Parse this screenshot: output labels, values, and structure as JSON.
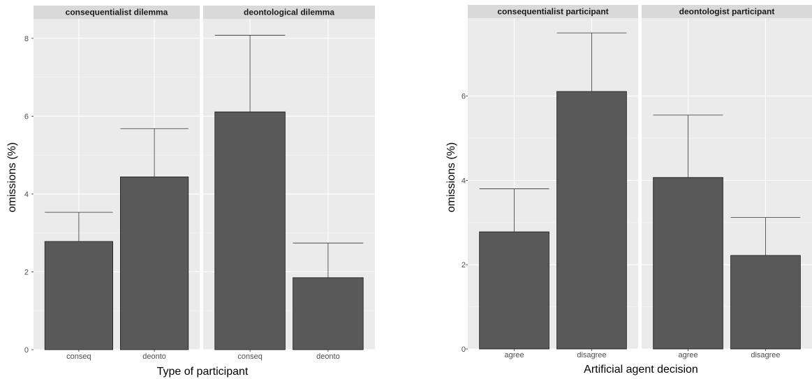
{
  "colors": {
    "panel_background": "#ebebeb",
    "strip_background": "#d9d9d9",
    "grid_major": "#ffffff",
    "grid_minor": "#f4f4f4",
    "bar_fill": "#595959",
    "bar_outline": "#1a1a1a",
    "errorbar": "#333333",
    "tick_label": "#4d4d4d"
  },
  "chart_data": [
    {
      "type": "bar",
      "xlabel": "Type of participant",
      "ylabel": "omissions (%)",
      "ylim": [
        0,
        8.5
      ],
      "yticks": [
        0,
        2,
        4,
        6,
        8
      ],
      "grid": true,
      "facets": [
        {
          "label": "consequentialist dilemma",
          "categories": [
            "conseq",
            "deonto"
          ],
          "values": [
            2.78,
            4.44
          ],
          "error_upper": [
            3.53,
            5.68
          ]
        },
        {
          "label": "deontological dilemma",
          "categories": [
            "conseq",
            "deonto"
          ],
          "values": [
            6.11,
            1.85
          ],
          "error_upper": [
            8.08,
            2.74
          ]
        }
      ]
    },
    {
      "type": "bar",
      "xlabel": "Artificial agent decision",
      "ylabel": "omissions (%)",
      "ylim": [
        0,
        7.85
      ],
      "yticks": [
        0,
        2,
        4,
        6
      ],
      "grid": true,
      "facets": [
        {
          "label": "consequentialist participant",
          "categories": [
            "agree",
            "disagree"
          ],
          "values": [
            2.78,
            6.11
          ],
          "error_upper": [
            3.8,
            7.5
          ]
        },
        {
          "label": "deontologist participant",
          "categories": [
            "agree",
            "disagree"
          ],
          "values": [
            4.07,
            2.22
          ],
          "error_upper": [
            5.55,
            3.12
          ]
        }
      ]
    }
  ]
}
